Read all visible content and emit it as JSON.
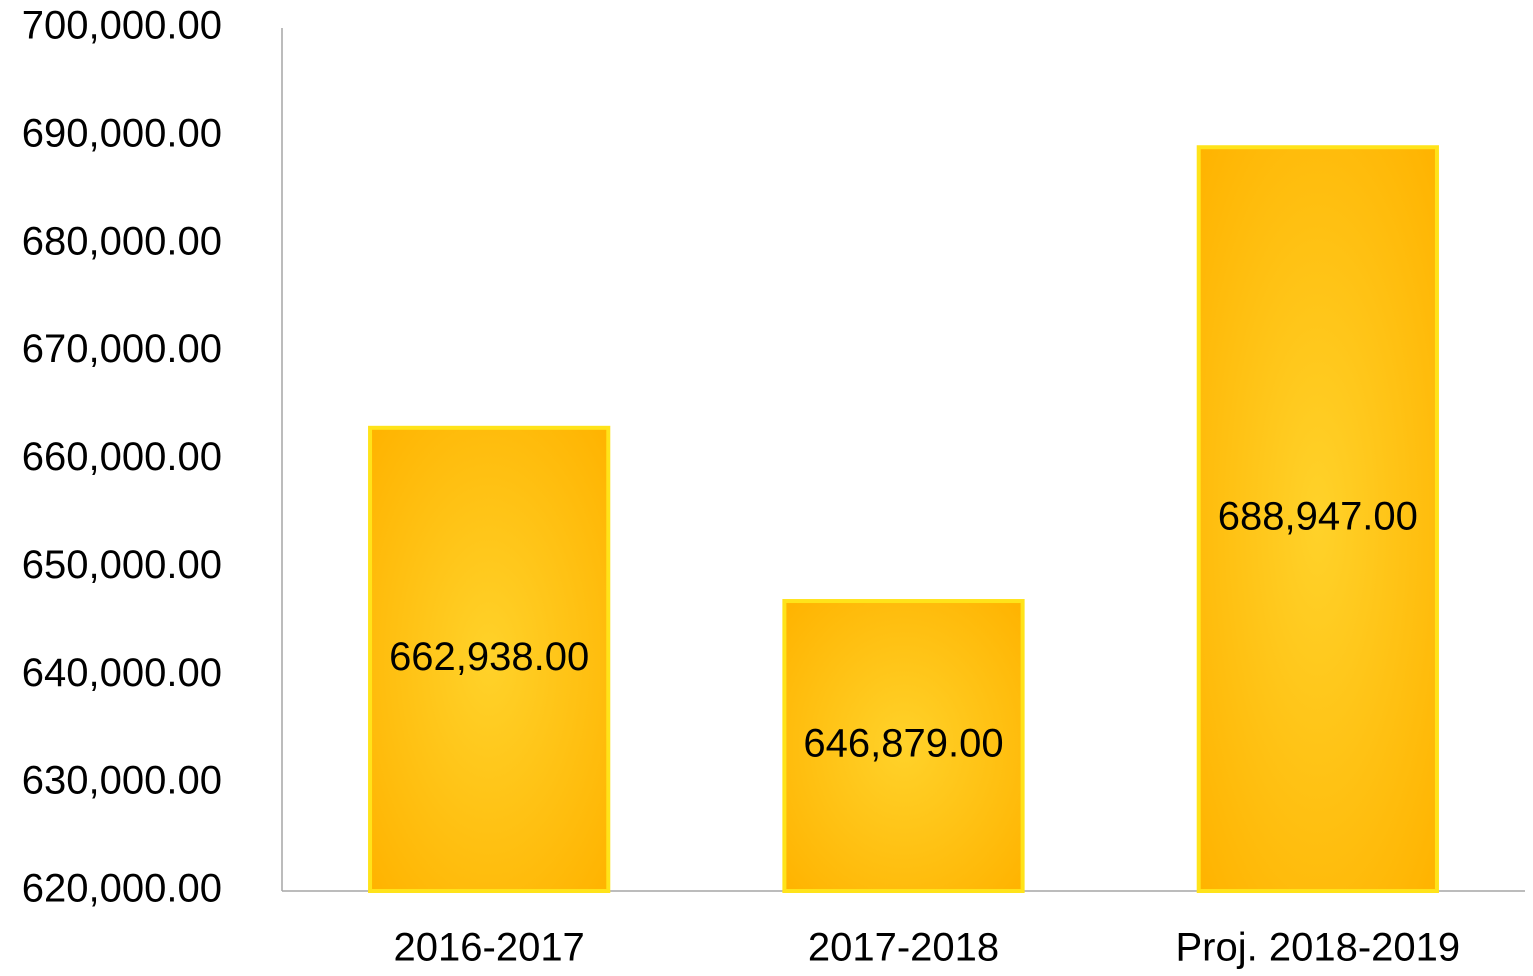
{
  "chart_data": {
    "type": "bar",
    "categories": [
      "2016-2017",
      "2017-2018",
      "Proj. 2018-2019"
    ],
    "values": [
      662938,
      646879,
      688947
    ],
    "value_labels": [
      "662,938.00",
      "646,879.00",
      "688,947.00"
    ],
    "color": "#FFB300",
    "ylim": [
      620000,
      700000
    ],
    "yticks": [
      {
        "value": 620000,
        "label": "620,000.00"
      },
      {
        "value": 630000,
        "label": "630,000.00"
      },
      {
        "value": 640000,
        "label": "640,000.00"
      },
      {
        "value": 650000,
        "label": "650,000.00"
      },
      {
        "value": 660000,
        "label": "660,000.00"
      },
      {
        "value": 670000,
        "label": "670,000.00"
      },
      {
        "value": 680000,
        "label": "680,000.00"
      },
      {
        "value": 690000,
        "label": "690,000.00"
      },
      {
        "value": 700000,
        "label": "700,000.00"
      }
    ],
    "grid": false
  }
}
